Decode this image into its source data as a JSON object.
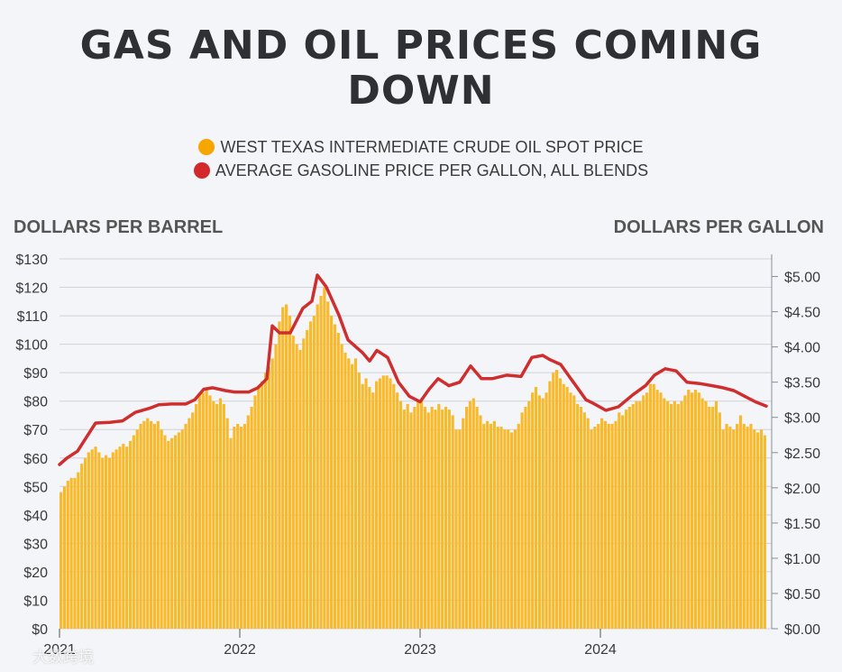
{
  "chart_data": {
    "type": "bar+line",
    "title": "GAS AND OIL PRICES COMING DOWN",
    "legend": [
      {
        "label": "WEST TEXAS INTERMEDIATE CRUDE OIL SPOT PRICE",
        "color": "#f7a600"
      },
      {
        "label": "AVERAGE GASOLINE PRICE PER GALLON, ALL BLENDS",
        "color": "#d3282b"
      }
    ],
    "left_axis": {
      "label": "DOLLARS PER BARREL",
      "range": [
        0,
        130
      ],
      "ticks": [
        "$0",
        "$10",
        "$20",
        "$30",
        "$40",
        "$50",
        "$60",
        "$70",
        "$80",
        "$90",
        "$100",
        "$110",
        "$120",
        "$130"
      ]
    },
    "right_axis": {
      "label": "DOLLARS PER GALLON",
      "range": [
        0,
        5.25
      ],
      "ticks": [
        "$0.00",
        "$0.50",
        "$1.00",
        "$1.50",
        "$2.00",
        "$2.50",
        "$3.00",
        "$3.50",
        "$4.00",
        "$4.50",
        "$5.00"
      ]
    },
    "x_axis": {
      "range": [
        2021,
        2024.95
      ],
      "ticks": [
        {
          "label": "2021",
          "value": 2021
        },
        {
          "label": "2022",
          "value": 2022
        },
        {
          "label": "2023",
          "value": 2023
        },
        {
          "label": "2024",
          "value": 2024
        }
      ]
    },
    "oil_weekly_start": 2021.0,
    "oil_weekly": [
      48,
      50,
      52,
      53,
      53,
      55,
      58,
      60,
      62,
      63,
      64,
      62,
      60,
      61,
      60,
      62,
      63,
      64,
      65,
      64,
      66,
      68,
      70,
      72,
      73,
      74,
      73,
      72,
      73,
      70,
      68,
      66,
      67,
      68,
      69,
      70,
      72,
      74,
      76,
      79,
      82,
      83,
      84,
      82,
      80,
      79,
      81,
      79,
      74,
      67,
      71,
      72,
      71,
      72,
      75,
      78,
      82,
      85,
      87,
      90,
      92,
      95,
      100,
      108,
      113,
      114,
      110,
      103,
      100,
      98,
      102,
      105,
      108,
      110,
      114,
      117,
      120,
      115,
      110,
      107,
      104,
      100,
      97,
      95,
      93,
      95,
      90,
      86,
      88,
      85,
      83,
      87,
      88,
      89,
      89,
      88,
      86,
      83,
      80,
      77,
      79,
      76,
      78,
      80,
      80,
      78,
      76,
      78,
      77,
      79,
      77,
      78,
      77,
      75,
      70,
      70,
      74,
      78,
      80,
      81,
      78,
      75,
      72,
      73,
      72,
      73,
      71,
      71,
      70,
      70,
      69,
      70,
      72,
      76,
      78,
      80,
      83,
      85,
      82,
      81,
      83,
      87,
      90,
      91,
      88,
      86,
      85,
      83,
      82,
      79,
      78,
      76,
      74,
      70,
      71,
      72,
      74,
      73,
      72,
      72,
      73,
      76,
      75,
      77,
      78,
      79,
      80,
      80,
      82,
      83,
      86,
      86,
      84,
      83,
      81,
      80,
      79,
      80,
      79,
      80,
      82,
      84,
      83,
      84,
      83,
      81,
      80,
      78,
      78,
      80,
      76,
      70,
      72,
      71,
      70,
      72,
      75,
      72,
      71,
      72,
      70,
      69,
      70,
      68
    ]
  },
  "watermark": "大数跨境"
}
